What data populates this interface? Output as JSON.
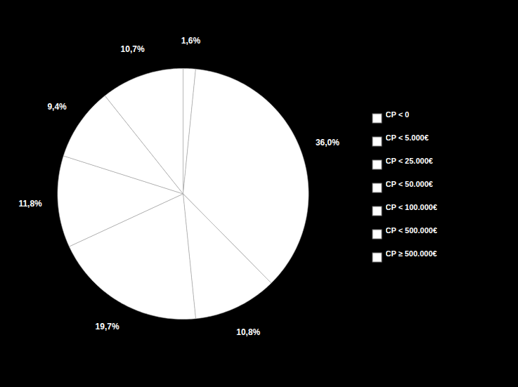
{
  "chart_data": {
    "type": "pie",
    "categories": [
      "CP < 0",
      "CP < 5.000€",
      "CP < 25.000€",
      "CP < 50.000€",
      "CP < 100.000€",
      "CP < 500.000€",
      "CP ≥ 500.000€"
    ],
    "values": [
      1.6,
      36.0,
      10.8,
      19.7,
      11.8,
      9.4,
      10.7
    ],
    "value_labels": [
      "1,6%",
      "36,0%",
      "10,8%",
      "19,7%",
      "11,8%",
      "9,4%",
      "10,7%"
    ],
    "data_labels": true,
    "color": "#ffffff",
    "legend": "right"
  }
}
